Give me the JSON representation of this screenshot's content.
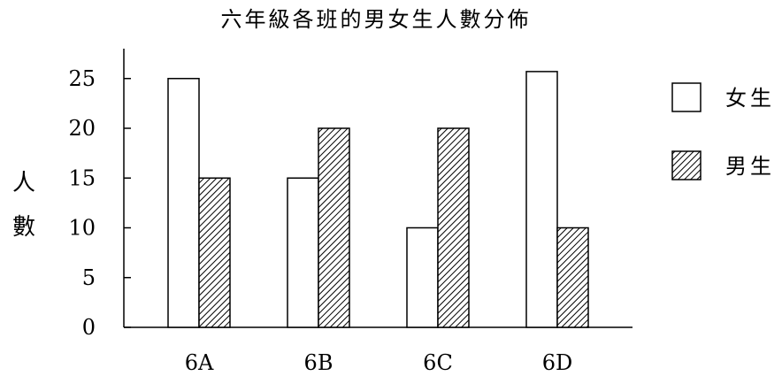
{
  "chart_data": {
    "type": "bar",
    "title": "六年級各班的男女生人數分佈",
    "xlabel": "",
    "ylabel": "人數",
    "categories": [
      "6A",
      "6B",
      "6C",
      "6D"
    ],
    "series": [
      {
        "name": "女生",
        "values": [
          25,
          15,
          10,
          25.7
        ],
        "fill": "white"
      },
      {
        "name": "男生",
        "values": [
          15,
          20,
          20,
          10
        ],
        "fill": "hatched"
      }
    ],
    "ylim": [
      0,
      28
    ],
    "yticks": [
      0,
      5,
      10,
      15,
      20,
      25
    ],
    "grid": false,
    "legend": "right"
  },
  "colors": {
    "stroke": "#000000",
    "background": "#ffffff"
  }
}
